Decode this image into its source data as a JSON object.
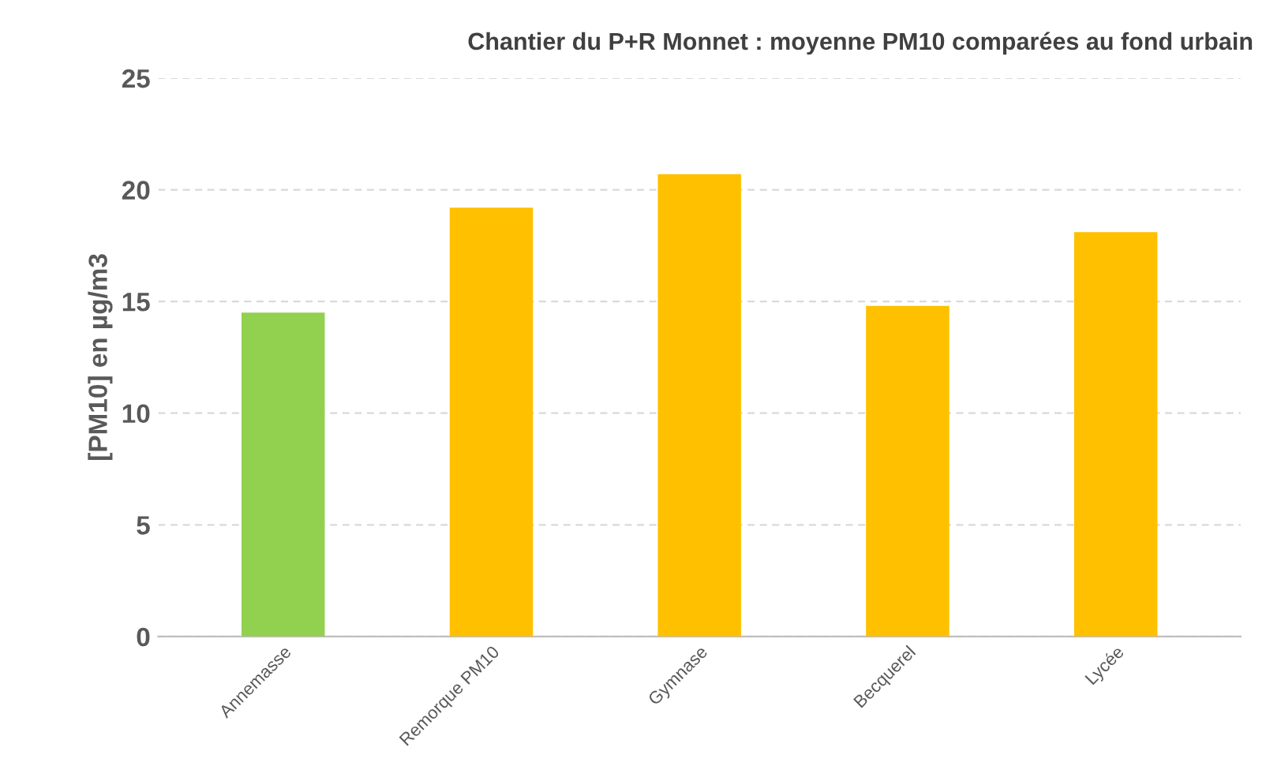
{
  "chart_data": {
    "type": "bar",
    "title": "Chantier du P+R Monnet : moyenne PM10 comparées au fond urbain",
    "ylabel": "[PM10] en µg/m3",
    "categories": [
      "Annemasse",
      "Remorque PM10",
      "Gymnase",
      "Becquerel",
      "Lycée"
    ],
    "values": [
      14.5,
      19.2,
      20.7,
      14.8,
      18.1
    ],
    "colors": [
      "#92d050",
      "#ffc000",
      "#ffc000",
      "#ffc000",
      "#ffc000"
    ],
    "ylim": [
      0,
      25
    ],
    "yticks": [
      0,
      5,
      10,
      15,
      20,
      25
    ],
    "grid": "y",
    "legend": false
  }
}
